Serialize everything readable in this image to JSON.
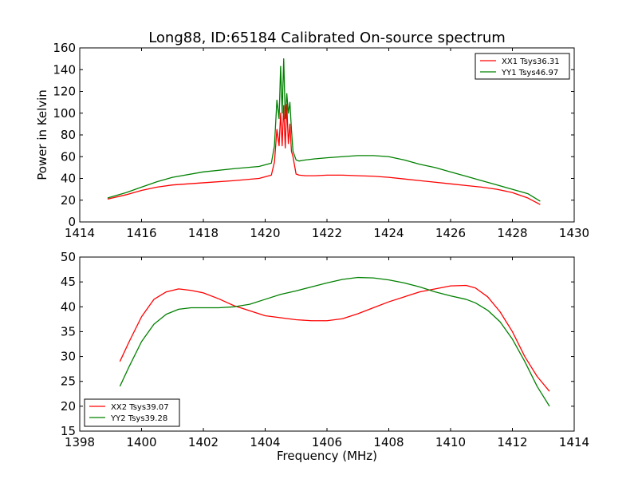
{
  "figure": {
    "title": "Long88, ID:65184 Calibrated On-source spectrum",
    "xlabel": "Frequency (MHz)",
    "ylabel": "Power in Kelvin"
  },
  "colors": {
    "red": "#ff0000",
    "green": "#008000"
  },
  "chart_data": [
    {
      "type": "line",
      "panel": "top",
      "title": "Long88, ID:65184 Calibrated On-source spectrum",
      "xlabel": "",
      "ylabel": "Power in Kelvin",
      "xlim": [
        1414,
        1430
      ],
      "ylim": [
        0,
        160
      ],
      "xticks": [
        1414,
        1416,
        1418,
        1420,
        1422,
        1424,
        1426,
        1428,
        1430
      ],
      "yticks": [
        0,
        20,
        40,
        60,
        80,
        100,
        120,
        140,
        160
      ],
      "legend": "top-right",
      "grid": false,
      "series": [
        {
          "name": "XX1 Tsys36.31",
          "color": "#ff0000",
          "x": [
            1414.9,
            1415.5,
            1416.0,
            1416.5,
            1417.0,
            1418.0,
            1419.0,
            1419.8,
            1420.2,
            1420.3,
            1420.38,
            1420.45,
            1420.5,
            1420.55,
            1420.6,
            1420.65,
            1420.7,
            1420.75,
            1420.8,
            1420.85,
            1420.9,
            1421.0,
            1421.1,
            1421.3,
            1421.6,
            1422.0,
            1422.5,
            1423.0,
            1423.5,
            1424.0,
            1424.5,
            1425.0,
            1425.5,
            1426.0,
            1426.5,
            1427.0,
            1427.5,
            1428.0,
            1428.5,
            1428.9
          ],
          "y": [
            21,
            25,
            29,
            32,
            34,
            36,
            38,
            40,
            43,
            55,
            85,
            70,
            100,
            70,
            107,
            68,
            108,
            72,
            90,
            65,
            60,
            44,
            43,
            42.5,
            42.5,
            43,
            43,
            42.5,
            42,
            41,
            39.5,
            38,
            36.5,
            35,
            33.5,
            32,
            30,
            27,
            22,
            16
          ]
        },
        {
          "name": "YY1 Tsys46.97",
          "color": "#008000",
          "x": [
            1414.9,
            1415.5,
            1416.0,
            1416.5,
            1417.0,
            1418.0,
            1419.0,
            1419.8,
            1420.2,
            1420.3,
            1420.38,
            1420.45,
            1420.5,
            1420.55,
            1420.6,
            1420.65,
            1420.7,
            1420.75,
            1420.8,
            1420.85,
            1420.9,
            1421.0,
            1421.1,
            1421.3,
            1421.6,
            1422.0,
            1422.5,
            1423.0,
            1423.5,
            1424.0,
            1424.5,
            1425.0,
            1425.5,
            1426.0,
            1426.5,
            1427.0,
            1427.5,
            1428.0,
            1428.5,
            1428.9
          ],
          "y": [
            22,
            27,
            32,
            37,
            41,
            46,
            49,
            51,
            54,
            70,
            112,
            95,
            143,
            100,
            150,
            95,
            118,
            100,
            110,
            85,
            65,
            57,
            56,
            57,
            58,
            59,
            60,
            61,
            61,
            60,
            57,
            53,
            50,
            46,
            42,
            38,
            34,
            30,
            26,
            19
          ]
        }
      ]
    },
    {
      "type": "line",
      "panel": "bottom",
      "title": "",
      "xlabel": "Frequency (MHz)",
      "ylabel": "",
      "xlim": [
        1398,
        1414
      ],
      "ylim": [
        15,
        50
      ],
      "xticks": [
        1398,
        1400,
        1402,
        1404,
        1406,
        1408,
        1410,
        1412,
        1414
      ],
      "yticks": [
        15,
        20,
        25,
        30,
        35,
        40,
        45,
        50
      ],
      "legend": "bottom-left",
      "grid": false,
      "series": [
        {
          "name": "XX2 Tsys39.07",
          "color": "#ff0000",
          "x": [
            1399.3,
            1399.6,
            1400.0,
            1400.4,
            1400.8,
            1401.2,
            1401.6,
            1402.0,
            1402.5,
            1403.0,
            1403.5,
            1404.0,
            1404.5,
            1405.0,
            1405.5,
            1406.0,
            1406.5,
            1407.0,
            1407.5,
            1408.0,
            1408.5,
            1409.0,
            1409.5,
            1410.0,
            1410.5,
            1410.8,
            1411.2,
            1411.6,
            1412.0,
            1412.4,
            1412.8,
            1413.2
          ],
          "y": [
            29,
            33,
            38,
            41.5,
            43,
            43.6,
            43.3,
            42.8,
            41.6,
            40.2,
            39.2,
            38.2,
            37.8,
            37.4,
            37.2,
            37.2,
            37.6,
            38.6,
            39.8,
            41,
            42,
            43,
            43.6,
            44.2,
            44.3,
            43.8,
            42,
            39,
            35,
            30,
            26,
            23
          ]
        },
        {
          "name": "YY2 Tsys39.28",
          "color": "#008000",
          "x": [
            1399.3,
            1399.6,
            1400.0,
            1400.4,
            1400.8,
            1401.2,
            1401.6,
            1402.0,
            1402.5,
            1403.0,
            1403.5,
            1404.0,
            1404.5,
            1405.0,
            1405.5,
            1406.0,
            1406.5,
            1407.0,
            1407.5,
            1408.0,
            1408.5,
            1409.0,
            1409.5,
            1410.0,
            1410.5,
            1410.8,
            1411.2,
            1411.6,
            1412.0,
            1412.4,
            1412.8,
            1413.2
          ],
          "y": [
            24,
            28,
            33,
            36.5,
            38.5,
            39.5,
            39.8,
            39.8,
            39.8,
            40,
            40.5,
            41.5,
            42.5,
            43.2,
            44,
            44.8,
            45.5,
            45.9,
            45.8,
            45.4,
            44.8,
            44,
            43,
            42.2,
            41.5,
            40.8,
            39.3,
            37,
            33.5,
            29,
            24,
            20
          ]
        }
      ]
    }
  ]
}
